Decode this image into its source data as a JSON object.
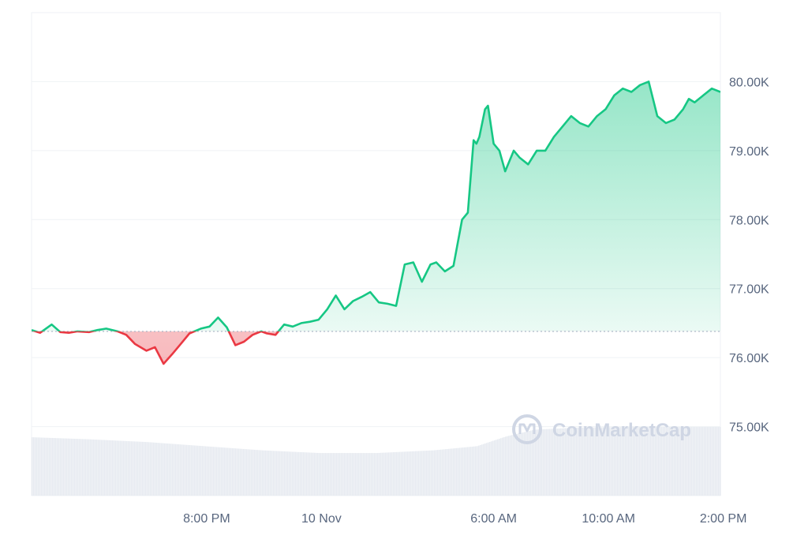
{
  "watermark": {
    "text": "CoinMarketCap",
    "icon": "coinmarketcap-logo-icon"
  },
  "colors": {
    "up": "#16c784",
    "down": "#ea3943",
    "grid": "#eff2f5",
    "baseline": "#a6b0c3",
    "volume": "#e6eaf0",
    "tick_text": "#58667e"
  },
  "chart_data": {
    "type": "line",
    "title": "",
    "xlabel": "",
    "ylabel": "",
    "baseline": 76380,
    "ylim": [
      74000,
      81000
    ],
    "xlim": [
      0,
      24
    ],
    "grid": true,
    "y_ticks": [
      {
        "value": 75000,
        "label": "75.00K"
      },
      {
        "value": 76000,
        "label": "76.00K"
      },
      {
        "value": 77000,
        "label": "77.00K"
      },
      {
        "value": 78000,
        "label": "78.00K"
      },
      {
        "value": 79000,
        "label": "79.00K"
      },
      {
        "value": 80000,
        "label": "80.00K"
      }
    ],
    "x_ticks": [
      {
        "value": 6.1,
        "label": "8:00 PM"
      },
      {
        "value": 10.1,
        "label": "10 Nov"
      },
      {
        "value": 16.1,
        "label": "6:00 AM"
      },
      {
        "value": 20.1,
        "label": "10:00 AM"
      },
      {
        "value": 24.1,
        "label": "2:00 PM"
      }
    ],
    "series": [
      {
        "x": [
          0,
          0.3,
          0.5,
          0.7,
          1.0,
          1.3,
          1.6,
          2.0,
          2.3,
          2.6,
          3.0,
          3.3,
          3.6,
          4.0,
          4.3,
          4.6,
          4.9,
          5.2,
          5.5,
          5.9,
          6.2,
          6.5,
          6.8,
          7.1,
          7.4,
          7.7,
          8.0,
          8.2,
          8.5,
          8.8,
          9.1,
          9.4,
          9.7,
          10.0,
          10.3,
          10.6,
          10.9,
          11.2,
          11.5,
          11.8,
          12.1,
          12.4,
          12.7,
          13.0,
          13.3,
          13.6,
          13.9,
          14.1,
          14.4,
          14.7,
          15.0,
          15.2,
          15.4,
          15.5,
          15.6,
          15.8,
          15.9,
          16.1,
          16.3,
          16.5,
          16.8,
          17.0,
          17.3,
          17.6,
          17.9,
          18.2,
          18.5,
          18.8,
          19.1,
          19.4,
          19.7,
          20.0,
          20.3,
          20.6,
          20.9,
          21.2,
          21.5,
          21.8,
          22.1,
          22.4,
          22.7,
          22.9,
          23.1,
          23.4,
          23.7,
          24.0
        ],
        "values": [
          76400,
          76360,
          76420,
          76480,
          76370,
          76360,
          76380,
          76370,
          76400,
          76420,
          76380,
          76330,
          76200,
          76100,
          76150,
          75910,
          76050,
          76200,
          76350,
          76420,
          76450,
          76580,
          76440,
          76180,
          76230,
          76330,
          76380,
          76350,
          76330,
          76480,
          76450,
          76500,
          76520,
          76550,
          76700,
          76900,
          76700,
          76820,
          76880,
          76950,
          76800,
          76780,
          76750,
          77350,
          77380,
          77100,
          77350,
          77380,
          77250,
          77330,
          78000,
          78100,
          79150,
          79100,
          79200,
          79600,
          79650,
          79100,
          79000,
          78700,
          79000,
          78900,
          78800,
          79000,
          79000,
          79200,
          79350,
          79500,
          79400,
          79350,
          79500,
          79600,
          79800,
          79900,
          79850,
          79950,
          80000,
          79500,
          79400,
          79450,
          79600,
          79750,
          79700,
          79800,
          79900,
          79850
        ]
      }
    ],
    "volume": {
      "x": [
        0,
        2,
        4,
        6,
        8,
        10,
        12,
        14,
        15.5,
        16.5,
        17.5,
        19,
        21,
        24
      ],
      "values": [
        0.85,
        0.82,
        0.78,
        0.72,
        0.66,
        0.62,
        0.62,
        0.66,
        0.72,
        0.86,
        0.96,
        0.99,
        1.0,
        1.0
      ]
    }
  }
}
